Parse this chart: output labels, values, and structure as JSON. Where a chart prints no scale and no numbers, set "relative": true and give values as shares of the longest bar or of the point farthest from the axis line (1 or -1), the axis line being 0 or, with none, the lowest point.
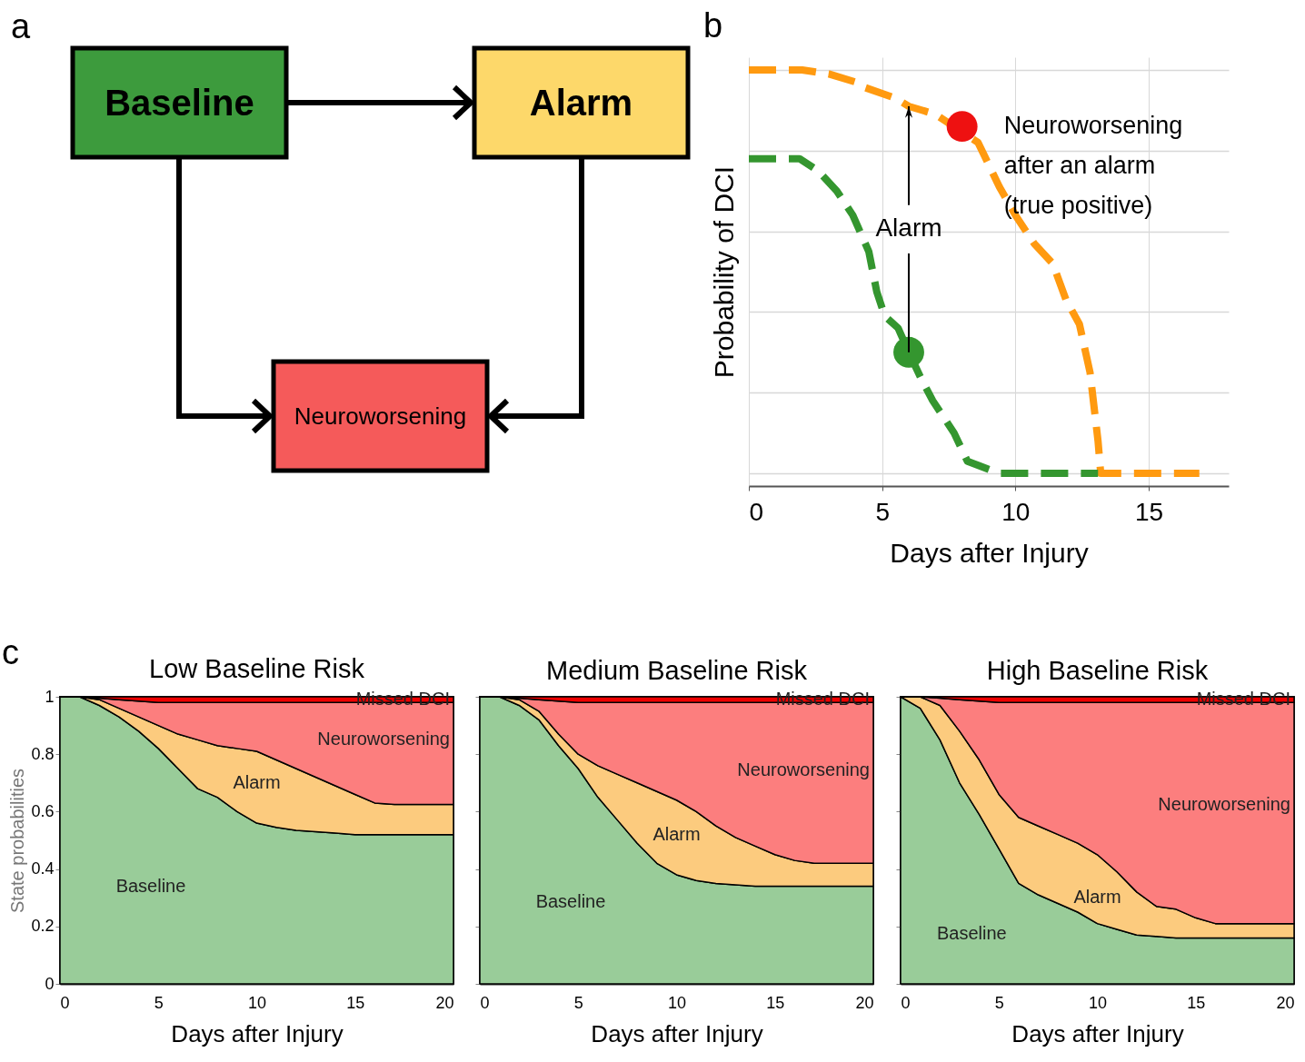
{
  "chart_data": [
    {
      "type": "other",
      "title": "a",
      "annotations": [
        "Baseline",
        "Alarm",
        "Neuroworsening"
      ],
      "colors": [
        "#3d9b3d",
        "#fdd86a",
        "#f55a5a"
      ]
    },
    {
      "type": "line",
      "title": "b",
      "relative": true,
      "xlabel": "Days after Injury",
      "ylabel": "Probability of DCI",
      "xlim": [
        0,
        18
      ],
      "xticks": [
        0,
        5,
        10,
        15
      ],
      "grid": true,
      "line_style": "dashed",
      "series": [
        {
          "color": "#ff9a10",
          "x": [
            0,
            1,
            2,
            3,
            4,
            4.2,
            5.5,
            6,
            7,
            8.6,
            9.4,
            10,
            10.7,
            11.4,
            11.9,
            12.4,
            12.8,
            13.1,
            13.2,
            14,
            15,
            16,
            16.9
          ],
          "values": [
            1,
            1,
            1,
            0.99,
            0.97,
            0.96,
            0.93,
            0.91,
            0.89,
            0.82,
            0.71,
            0.64,
            0.57,
            0.52,
            0.43,
            0.37,
            0.25,
            0.08,
            0,
            0,
            0,
            0,
            0
          ]
        },
        {
          "color": "#34962f",
          "x": [
            0,
            1.9,
            2.6,
            3.3,
            3.9,
            4.5,
            4.8,
            5.1,
            5.6,
            6,
            6.5,
            6.9,
            7.7,
            8.2,
            9.4,
            11,
            13.1
          ],
          "values": [
            0.78,
            0.78,
            0.75,
            0.7,
            0.64,
            0.55,
            0.45,
            0.39,
            0.36,
            0.3,
            0.23,
            0.18,
            0.1,
            0.03,
            0,
            0,
            0
          ]
        },
        {
          "type": "scatter",
          "marker": "circle",
          "color": "#ee1111",
          "x": [
            8
          ],
          "values": [
            0.86
          ]
        },
        {
          "type": "scatter",
          "marker": "circle",
          "color": "#34962f",
          "x": [
            6
          ],
          "values": [
            0.3
          ]
        }
      ],
      "annotations": [
        "Alarm",
        {
          "text": "Neuroworsening\nafter an alarm\n(true positive)",
          "x": 8,
          "y": 0.86
        }
      ]
    },
    {
      "type": "area",
      "stacked": true,
      "title": "Low Baseline Risk",
      "xlabel": "Days after Injury",
      "ylabel": "State probabilities",
      "annotations": [
        "c"
      ],
      "x": [
        0,
        1,
        2,
        3,
        4,
        5,
        6,
        7,
        8,
        9,
        10,
        11,
        12,
        13,
        14,
        15,
        16,
        17,
        18,
        19,
        20
      ],
      "xlim": [
        0,
        20
      ],
      "xticks": [
        0,
        5,
        10,
        15,
        20
      ],
      "ylim": [
        0,
        1
      ],
      "yticks": [
        0,
        0.2,
        0.4,
        0.6,
        0.8,
        1
      ],
      "series": [
        {
          "name": "Baseline",
          "color": "#99cc99",
          "values": [
            1,
            1,
            0.97,
            0.93,
            0.88,
            0.82,
            0.75,
            0.68,
            0.65,
            0.6,
            0.56,
            0.545,
            0.535,
            0.53,
            0.525,
            0.52,
            0.52,
            0.52,
            0.52,
            0.52,
            0.52
          ]
        },
        {
          "name": "Alarm",
          "color": "#fccb7e",
          "values": [
            0,
            0,
            0.02,
            0.03,
            0.05,
            0.08,
            0.12,
            0.17,
            0.18,
            0.22,
            0.25,
            0.235,
            0.215,
            0.19,
            0.165,
            0.14,
            0.11,
            0.105,
            0.105,
            0.105,
            0.105
          ]
        },
        {
          "name": "Neuroworsening",
          "color": "#fc7e7e",
          "values": [
            0,
            0,
            0.005,
            0.03,
            0.055,
            0.08,
            0.11,
            0.13,
            0.15,
            0.16,
            0.17,
            0.2,
            0.23,
            0.26,
            0.29,
            0.32,
            0.35,
            0.355,
            0.355,
            0.355,
            0.355
          ]
        },
        {
          "name": "Missed DCI",
          "color": "#ee0000",
          "values": [
            0,
            0,
            0.005,
            0.01,
            0.015,
            0.02,
            0.02,
            0.02,
            0.02,
            0.02,
            0.02,
            0.02,
            0.02,
            0.02,
            0.02,
            0.02,
            0.02,
            0.02,
            0.02,
            0.02,
            0.02
          ]
        }
      ]
    },
    {
      "type": "area",
      "stacked": true,
      "title": "Medium Baseline Risk",
      "xlabel": "Days after Injury",
      "tick_labels": "x",
      "x": [
        0,
        1,
        2,
        3,
        4,
        5,
        6,
        7,
        8,
        9,
        10,
        11,
        12,
        13,
        14,
        15,
        16,
        17,
        18,
        19,
        20
      ],
      "xlim": [
        0,
        20
      ],
      "xticks": [
        0,
        5,
        10,
        15,
        20
      ],
      "ylim": [
        0,
        1
      ],
      "yticks": [
        0,
        0.2,
        0.4,
        0.6,
        0.8,
        1
      ],
      "series": [
        {
          "name": "Baseline",
          "color": "#99cc99",
          "values": [
            1,
            1,
            0.97,
            0.92,
            0.83,
            0.75,
            0.65,
            0.57,
            0.49,
            0.42,
            0.38,
            0.36,
            0.35,
            0.345,
            0.34,
            0.34,
            0.34,
            0.34,
            0.34,
            0.34,
            0.34
          ]
        },
        {
          "name": "Alarm",
          "color": "#fccb7e",
          "values": [
            0,
            0,
            0.02,
            0.03,
            0.04,
            0.05,
            0.11,
            0.16,
            0.21,
            0.25,
            0.26,
            0.24,
            0.2,
            0.165,
            0.14,
            0.11,
            0.09,
            0.08,
            0.08,
            0.08,
            0.08
          ]
        },
        {
          "name": "Neuroworsening",
          "color": "#fc7e7e",
          "values": [
            0,
            0,
            0.005,
            0.04,
            0.115,
            0.18,
            0.22,
            0.25,
            0.28,
            0.31,
            0.34,
            0.38,
            0.43,
            0.47,
            0.5,
            0.53,
            0.55,
            0.56,
            0.56,
            0.56,
            0.56
          ]
        },
        {
          "name": "Missed DCI",
          "color": "#ee0000",
          "values": [
            0,
            0,
            0.005,
            0.01,
            0.015,
            0.02,
            0.02,
            0.02,
            0.02,
            0.02,
            0.02,
            0.02,
            0.02,
            0.02,
            0.02,
            0.02,
            0.02,
            0.02,
            0.02,
            0.02,
            0.02
          ]
        }
      ]
    },
    {
      "type": "area",
      "stacked": true,
      "title": "High Baseline Risk",
      "xlabel": "Days after Injury",
      "tick_labels": "x",
      "x": [
        0,
        1,
        2,
        3,
        4,
        5,
        6,
        7,
        8,
        9,
        10,
        11,
        12,
        13,
        14,
        15,
        16,
        17,
        18,
        19,
        20
      ],
      "xlim": [
        0,
        20
      ],
      "xticks": [
        0,
        5,
        10,
        15,
        20
      ],
      "ylim": [
        0,
        1
      ],
      "yticks": [
        0,
        0.2,
        0.4,
        0.6,
        0.8,
        1
      ],
      "series": [
        {
          "name": "Baseline",
          "color": "#99cc99",
          "values": [
            1,
            0.96,
            0.85,
            0.7,
            0.59,
            0.47,
            0.35,
            0.31,
            0.28,
            0.25,
            0.21,
            0.19,
            0.17,
            0.165,
            0.16,
            0.16,
            0.16,
            0.16,
            0.16,
            0.16,
            0.16
          ]
        },
        {
          "name": "Alarm",
          "color": "#fccb7e",
          "values": [
            0,
            0.04,
            0.12,
            0.18,
            0.19,
            0.19,
            0.23,
            0.24,
            0.24,
            0.24,
            0.24,
            0.2,
            0.15,
            0.105,
            0.1,
            0.07,
            0.05,
            0.05,
            0.05,
            0.05,
            0.05
          ]
        },
        {
          "name": "Neuroworsening",
          "color": "#fc7e7e",
          "values": [
            0,
            0,
            0.025,
            0.11,
            0.205,
            0.32,
            0.4,
            0.43,
            0.46,
            0.49,
            0.53,
            0.59,
            0.66,
            0.71,
            0.72,
            0.75,
            0.77,
            0.77,
            0.77,
            0.77,
            0.77
          ]
        },
        {
          "name": "Missed DCI",
          "color": "#ee0000",
          "values": [
            0,
            0,
            0.005,
            0.01,
            0.015,
            0.02,
            0.02,
            0.02,
            0.02,
            0.02,
            0.02,
            0.02,
            0.02,
            0.02,
            0.02,
            0.02,
            0.02,
            0.02,
            0.02,
            0.02,
            0.02
          ]
        }
      ]
    }
  ]
}
